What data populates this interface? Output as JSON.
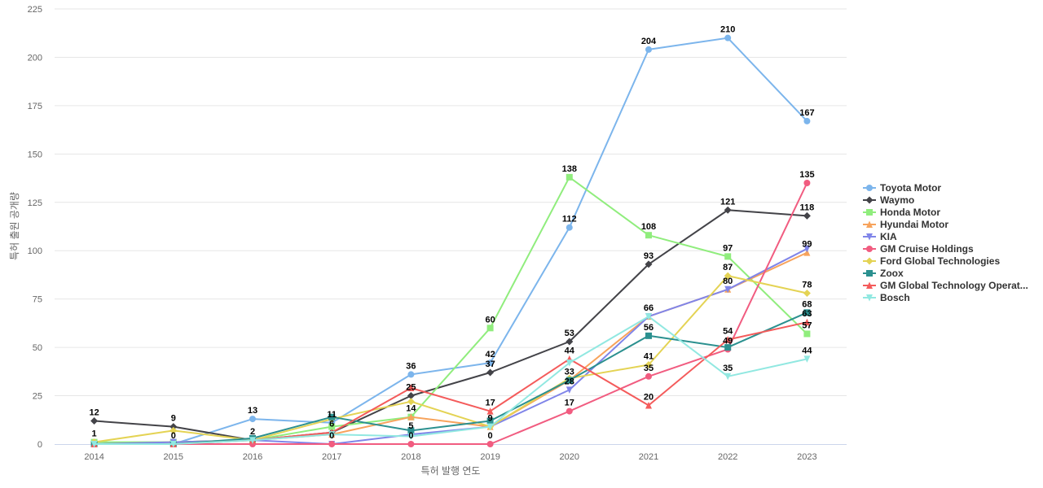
{
  "chart_data": {
    "type": "line",
    "title": "",
    "xlabel": "특허 발행 연도",
    "ylabel": "특허 출원 공개량",
    "categories": [
      "2014",
      "2015",
      "2016",
      "2017",
      "2018",
      "2019",
      "2020",
      "2021",
      "2022",
      "2023"
    ],
    "ylim": [
      0,
      225
    ],
    "yticks": [
      0,
      25,
      50,
      75,
      100,
      125,
      150,
      175,
      200,
      225
    ],
    "grid": true,
    "legend_position": "right",
    "series": [
      {
        "name": "Toyota Motor",
        "color": "#7cb5ec",
        "marker": "circle",
        "values": [
          1,
          0,
          13,
          11,
          36,
          42,
          112,
          204,
          210,
          167
        ]
      },
      {
        "name": "Waymo",
        "color": "#434348",
        "marker": "diamond",
        "values": [
          12,
          9,
          2,
          6,
          25,
          37,
          53,
          93,
          121,
          118
        ]
      },
      {
        "name": "Honda Motor",
        "color": "#90ed7d",
        "marker": "square",
        "values": [
          1,
          1,
          2,
          9,
          14,
          60,
          138,
          108,
          97,
          57
        ]
      },
      {
        "name": "Hyundai Motor",
        "color": "#f7a35c",
        "marker": "triangle",
        "values": [
          0,
          1,
          2,
          5,
          14,
          9,
          33,
          66,
          80,
          99
        ]
      },
      {
        "name": "KIA",
        "color": "#8085e9",
        "marker": "triangle-down",
        "values": [
          0,
          1,
          2,
          0,
          5,
          9,
          28,
          66,
          80,
          101
        ]
      },
      {
        "name": "GM Cruise Holdings",
        "color": "#f15c80",
        "marker": "circle",
        "values": [
          0,
          0,
          0,
          0,
          0,
          0,
          17,
          35,
          49,
          135
        ]
      },
      {
        "name": "Ford Global Technologies",
        "color": "#e4d354",
        "marker": "diamond",
        "values": [
          1,
          7,
          2,
          13,
          22,
          9,
          34,
          41,
          87,
          78
        ]
      },
      {
        "name": "Zoox",
        "color": "#2b908f",
        "marker": "square",
        "values": [
          0,
          0,
          3,
          14,
          7,
          12,
          33,
          56,
          50,
          68
        ]
      },
      {
        "name": "GM Global Technology Operat...",
        "color": "#f45b5b",
        "marker": "triangle",
        "values": [
          0,
          0,
          2,
          6,
          29,
          17,
          44,
          20,
          54,
          63
        ]
      },
      {
        "name": "Bosch",
        "color": "#91e8e1",
        "marker": "triangle-down",
        "values": [
          0,
          0,
          2,
          5,
          4,
          9,
          42,
          66,
          35,
          44
        ]
      }
    ],
    "data_labels": [
      {
        "category": "2014",
        "value": 12,
        "text": "12"
      },
      {
        "category": "2014",
        "value": 1,
        "text": "1"
      },
      {
        "category": "2015",
        "value": 9,
        "text": "9"
      },
      {
        "category": "2015",
        "value": 0,
        "text": "0"
      },
      {
        "category": "2016",
        "value": 13,
        "text": "13"
      },
      {
        "category": "2016",
        "value": 2,
        "text": "2"
      },
      {
        "category": "2017",
        "value": 11,
        "text": "11"
      },
      {
        "category": "2017",
        "value": 6,
        "text": "6"
      },
      {
        "category": "2017",
        "value": 0,
        "text": "0"
      },
      {
        "category": "2018",
        "value": 36,
        "text": "36"
      },
      {
        "category": "2018",
        "value": 25,
        "text": "25"
      },
      {
        "category": "2018",
        "value": 14,
        "text": "14"
      },
      {
        "category": "2018",
        "value": 5,
        "text": "5"
      },
      {
        "category": "2018",
        "value": 0,
        "text": "0"
      },
      {
        "category": "2019",
        "value": 60,
        "text": "60"
      },
      {
        "category": "2019",
        "value": 42,
        "text": "42"
      },
      {
        "category": "2019",
        "value": 37,
        "text": "37"
      },
      {
        "category": "2019",
        "value": 17,
        "text": "17"
      },
      {
        "category": "2019",
        "value": 9,
        "text": "9"
      },
      {
        "category": "2019",
        "value": 0,
        "text": "0"
      },
      {
        "category": "2020",
        "value": 138,
        "text": "138"
      },
      {
        "category": "2020",
        "value": 112,
        "text": "112"
      },
      {
        "category": "2020",
        "value": 53,
        "text": "53"
      },
      {
        "category": "2020",
        "value": 44,
        "text": "44"
      },
      {
        "category": "2020",
        "value": 33,
        "text": "33"
      },
      {
        "category": "2020",
        "value": 28,
        "text": "28"
      },
      {
        "category": "2020",
        "value": 17,
        "text": "17"
      },
      {
        "category": "2021",
        "value": 204,
        "text": "204"
      },
      {
        "category": "2021",
        "value": 108,
        "text": "108"
      },
      {
        "category": "2021",
        "value": 93,
        "text": "93"
      },
      {
        "category": "2021",
        "value": 66,
        "text": "66"
      },
      {
        "category": "2021",
        "value": 56,
        "text": "56"
      },
      {
        "category": "2021",
        "value": 41,
        "text": "41"
      },
      {
        "category": "2021",
        "value": 35,
        "text": "35"
      },
      {
        "category": "2021",
        "value": 20,
        "text": "20"
      },
      {
        "category": "2022",
        "value": 210,
        "text": "210"
      },
      {
        "category": "2022",
        "value": 121,
        "text": "121"
      },
      {
        "category": "2022",
        "value": 97,
        "text": "97"
      },
      {
        "category": "2022",
        "value": 87,
        "text": "87"
      },
      {
        "category": "2022",
        "value": 80,
        "text": "80"
      },
      {
        "category": "2022",
        "value": 54,
        "text": "54"
      },
      {
        "category": "2022",
        "value": 49,
        "text": "49"
      },
      {
        "category": "2022",
        "value": 35,
        "text": "35"
      },
      {
        "category": "2023",
        "value": 167,
        "text": "167"
      },
      {
        "category": "2023",
        "value": 135,
        "text": "135"
      },
      {
        "category": "2023",
        "value": 118,
        "text": "118"
      },
      {
        "category": "2023",
        "value": 99,
        "text": "99"
      },
      {
        "category": "2023",
        "value": 78,
        "text": "78"
      },
      {
        "category": "2023",
        "value": 68,
        "text": "68"
      },
      {
        "category": "2023",
        "value": 63,
        "text": "63"
      },
      {
        "category": "2023",
        "value": 57,
        "text": "57"
      },
      {
        "category": "2023",
        "value": 44,
        "text": "44"
      }
    ]
  }
}
